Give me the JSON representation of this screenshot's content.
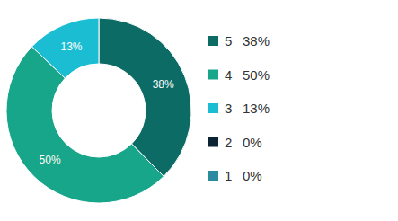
{
  "chart_data": {
    "type": "pie",
    "categories": [
      "5",
      "4",
      "3",
      "2",
      "1"
    ],
    "values": [
      38,
      50,
      13,
      0,
      0
    ],
    "value_labels": [
      "38%",
      "50%",
      "13%",
      "0%",
      "0%"
    ],
    "colors": [
      "#0d6b66",
      "#18a68a",
      "#1bbdd3",
      "#0a2433",
      "#2b8c9f"
    ],
    "data_labels": true,
    "legend": "right"
  }
}
